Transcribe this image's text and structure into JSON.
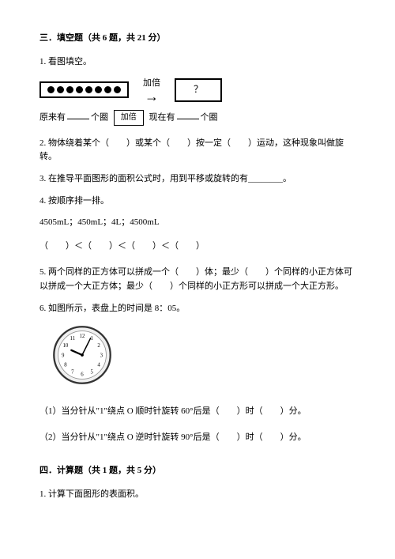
{
  "section3": {
    "title": "三．填空题（共 6 题，共 21 分）",
    "q1": {
      "label": "1. 看图填空。",
      "dots_count": 8,
      "arrow_label": "加倍",
      "question_mark": "？",
      "fill_prefix": "原来有",
      "fill_unit1": "个圈",
      "box_label": "加倍",
      "fill_mid": "现在有",
      "fill_unit2": "个圈"
    },
    "q2": "2. 物体绕着某个（　　）或某个（　　）按一定（　　）运动，这种现象叫做旋转。",
    "q3": "3. 在推导平面图形的面积公式时，用到平移或旋转的有________。",
    "q4": {
      "label": "4. 按顺序排一排。",
      "values": "4505mL；450mL；4L；4500mL",
      "compare": "（　　）＜（　　）＜（　　）＜（　　）"
    },
    "q5": "5. 两个同样的正方体可以拼成一个（　　）体；最少（　　）个同样的小正方体可以拼成一个大正方体；最少（　　）个同样的小正方形可以拼成一个大正方形。",
    "q6": {
      "label": "6. 如图所示，表盘上的时间是 8：05。",
      "sub1": "（1）当分针从\"1\"绕点 O 顺时针旋转 60°后是（　　）时（　　）分。",
      "sub2": "（2）当分针从\"1\"绕点 O 逆时针旋转 90°后是（　　）时（　　）分。"
    },
    "clock": {
      "hour_marks": [
        "12",
        "1",
        "2",
        "3",
        "4",
        "5",
        "6",
        "7",
        "8",
        "9",
        "10",
        "11"
      ],
      "face_color": "#f0f0f0",
      "border_color": "#333333"
    }
  },
  "section4": {
    "title": "四．计算题（共 1 题，共 5 分）",
    "q1": "1. 计算下面图形的表面积。"
  }
}
